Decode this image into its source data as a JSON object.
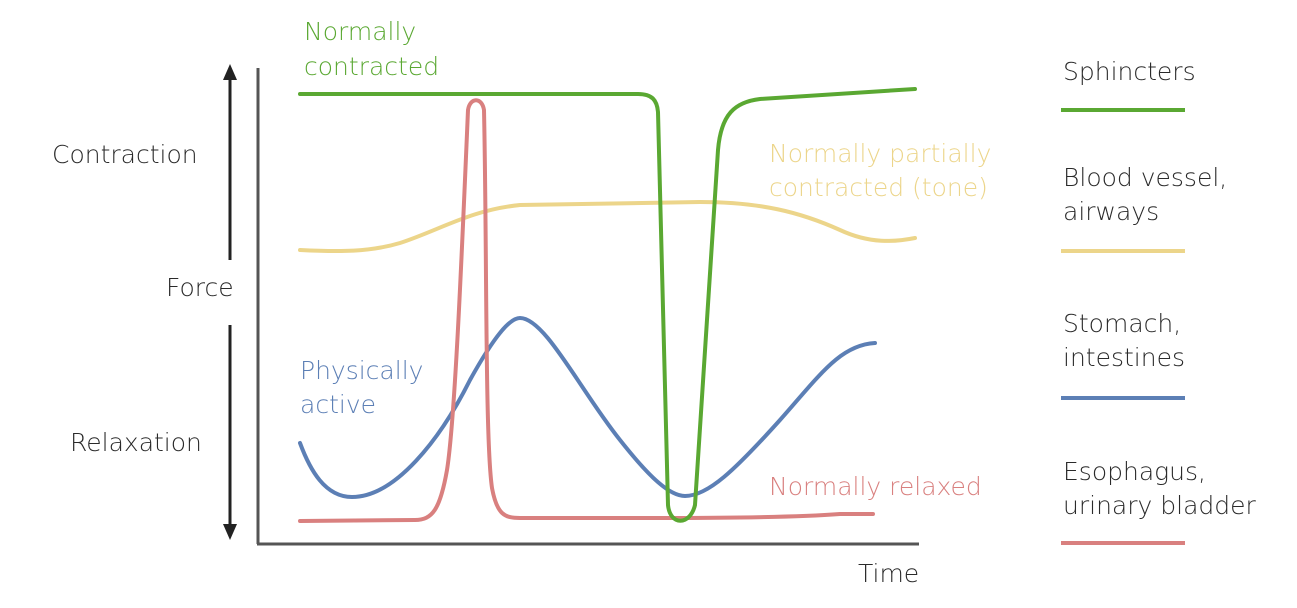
{
  "axes": {
    "y_label": "Force",
    "x_label": "Time",
    "y_high_label": "Contraction",
    "y_low_label": "Relaxation"
  },
  "annotations": {
    "green": [
      "Normally",
      "contracted"
    ],
    "yellow": [
      "Normally partially",
      "contracted (tone)"
    ],
    "blue": [
      "Physically",
      "active"
    ],
    "red": "Normally relaxed"
  },
  "legend": [
    {
      "lines": [
        "Sphincters"
      ],
      "color": "#5aa832"
    },
    {
      "lines": [
        "Blood vessel,",
        "airways"
      ],
      "color": "#ecd58a"
    },
    {
      "lines": [
        "Stomach,",
        "intestines"
      ],
      "color": "#5c7fb5"
    },
    {
      "lines": [
        "Esophagus,",
        "urinary bladder"
      ],
      "color": "#d9807f"
    }
  ],
  "colors": {
    "axis": "#555555",
    "arrow": "#222222",
    "label_text": "#2a2a2a"
  }
}
